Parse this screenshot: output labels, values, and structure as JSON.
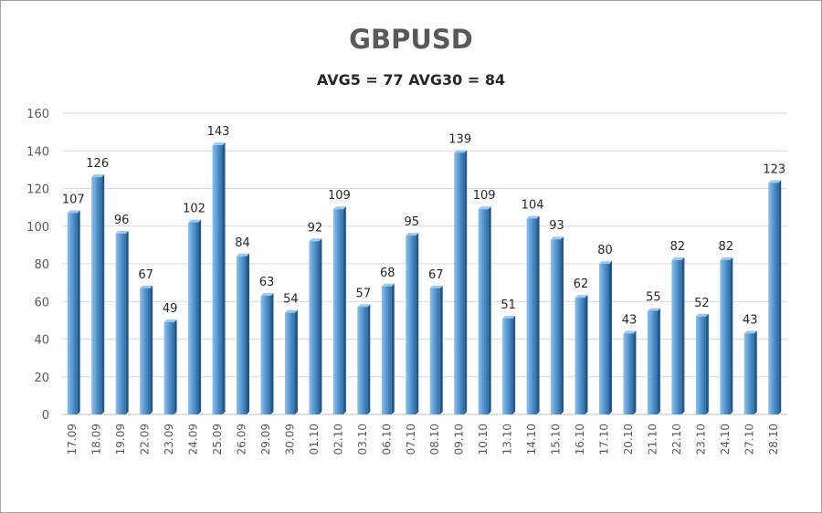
{
  "chart_data": {
    "type": "bar",
    "title": "GBPUSD",
    "subtitle": "AVG5 = 77 AVG30 = 84",
    "xlabel": "",
    "ylabel": "",
    "ylim": [
      0,
      160
    ],
    "yticks": [
      "0",
      "20",
      "40",
      "60",
      "80",
      "100",
      "120",
      "140",
      "160"
    ],
    "grid": true,
    "legend": "none",
    "bar_color": "#5b9bd5",
    "categories": [
      "17.09",
      "18.09",
      "19.09",
      "22.09",
      "23.09",
      "24.09",
      "25.09",
      "26.09",
      "29.09",
      "30.09",
      "01.10",
      "02.10",
      "03.10",
      "06.10",
      "07.10",
      "08.10",
      "09.10",
      "10.10",
      "13.10",
      "14.10",
      "15.10",
      "16.10",
      "17.10",
      "20.10",
      "21.10",
      "22.10",
      "23.10",
      "24.10",
      "27.10",
      "28.10"
    ],
    "values": [
      107,
      126,
      96,
      67,
      49,
      102,
      143,
      84,
      63,
      54,
      92,
      109,
      57,
      68,
      95,
      67,
      139,
      109,
      51,
      104,
      93,
      62,
      80,
      43,
      55,
      82,
      52,
      82,
      43,
      123
    ]
  }
}
